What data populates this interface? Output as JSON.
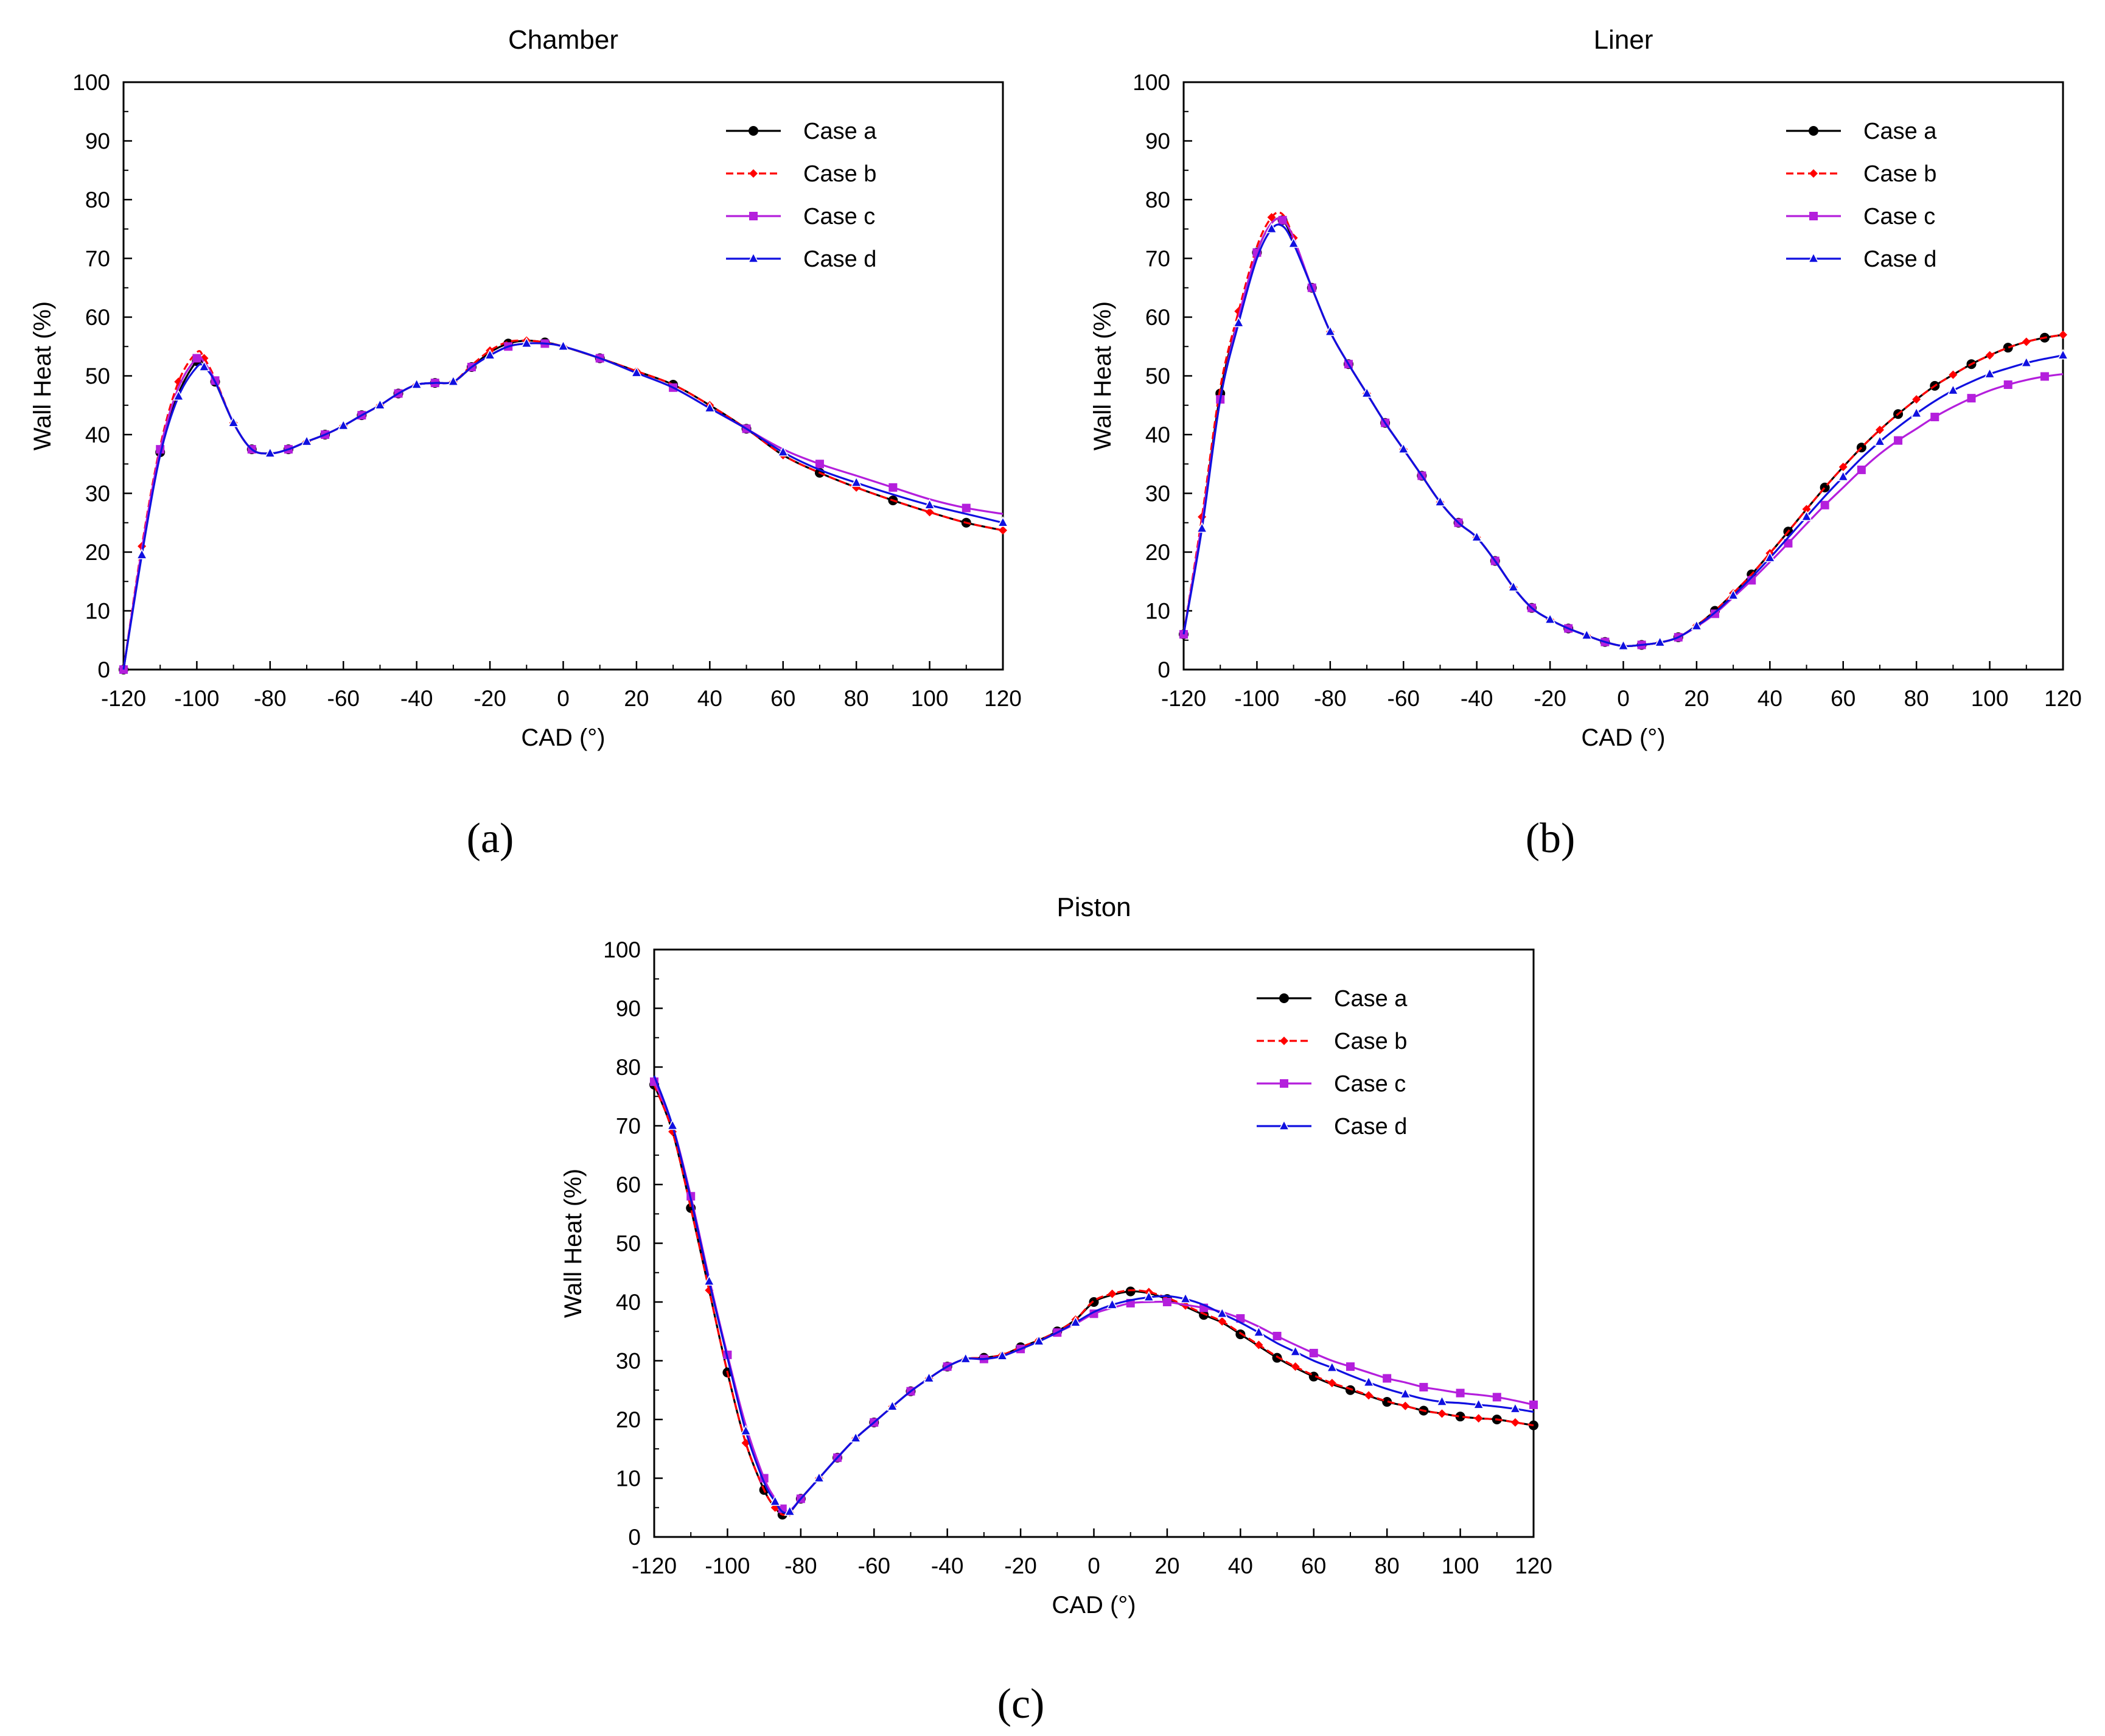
{
  "figure": {
    "panel_labels": [
      "(a)",
      "(b)",
      "(c)"
    ],
    "legend_entries": [
      "Case a",
      "Case b",
      "Case c",
      "Case d"
    ]
  },
  "series_styles": [
    {
      "name": "Case a",
      "color": "#000000",
      "marker": "circle",
      "dashed": false
    },
    {
      "name": "Case b",
      "color": "#ff0000",
      "marker": "diamond",
      "dashed": true
    },
    {
      "name": "Case c",
      "color": "#b41fdc",
      "marker": "square",
      "dashed": false
    },
    {
      "name": "Case d",
      "color": "#1010e0",
      "marker": "triangle",
      "dashed": false
    }
  ],
  "chart_data": [
    {
      "type": "line",
      "title": "Chamber",
      "xlabel": "CAD (°)",
      "ylabel": "Wall Heat (%)",
      "xlim": [
        -120,
        120
      ],
      "ylim": [
        0,
        100
      ],
      "xticks": [
        -120,
        -100,
        -80,
        -60,
        -40,
        -20,
        0,
        20,
        40,
        60,
        80,
        100,
        120
      ],
      "yticks": [
        0,
        10,
        20,
        30,
        40,
        50,
        60,
        70,
        80,
        90,
        100
      ],
      "legend_position": "top-right",
      "x": [
        -120,
        -115,
        -110,
        -105,
        -100,
        -98,
        -95,
        -90,
        -85,
        -80,
        -75,
        -70,
        -65,
        -60,
        -55,
        -50,
        -45,
        -40,
        -35,
        -30,
        -25,
        -20,
        -15,
        -10,
        -5,
        0,
        10,
        20,
        30,
        40,
        50,
        60,
        70,
        80,
        90,
        100,
        110,
        120
      ],
      "series": [
        {
          "name": "Case a",
          "values": [
            0,
            20,
            37,
            47,
            52.5,
            52,
            49,
            42,
            37.5,
            36.8,
            37.5,
            38.8,
            40,
            41.5,
            43.3,
            45,
            47,
            48.5,
            48.8,
            49,
            51.5,
            54,
            55.5,
            56,
            55.7,
            55,
            53,
            50.8,
            48.5,
            45,
            41,
            36.5,
            33.5,
            31,
            28.8,
            26.8,
            25,
            23.7
          ]
        },
        {
          "name": "Case b",
          "values": [
            0,
            21,
            38,
            49,
            54,
            53,
            49.5,
            42,
            37.5,
            36.8,
            37.5,
            38.8,
            40,
            41.5,
            43.3,
            45,
            47,
            48.5,
            48.8,
            49,
            51.8,
            54.3,
            55.8,
            56,
            55.7,
            55,
            53,
            50.8,
            48.5,
            45,
            41,
            36.5,
            33.5,
            31,
            28.8,
            26.8,
            25,
            23.7
          ]
        },
        {
          "name": "Case c",
          "values": [
            0,
            20.5,
            37.5,
            48,
            53,
            52.3,
            49.2,
            42,
            37.5,
            36.8,
            37.5,
            38.8,
            40,
            41.5,
            43.3,
            45,
            47,
            48.5,
            48.8,
            49,
            51.5,
            53.5,
            55,
            55.5,
            55.5,
            55,
            53,
            50.5,
            48,
            44.5,
            41,
            37.5,
            35,
            33,
            31,
            29,
            27.5,
            26.5
          ]
        },
        {
          "name": "Case d",
          "values": [
            0,
            19.5,
            36.5,
            46.5,
            51.5,
            51.5,
            49,
            42,
            37.5,
            36.8,
            37.5,
            38.8,
            40,
            41.5,
            43.3,
            45,
            47,
            48.5,
            48.8,
            49,
            51.5,
            53.5,
            55,
            55.5,
            55.5,
            55,
            53,
            50.5,
            48,
            44.5,
            41,
            37,
            34,
            31.8,
            29.8,
            28,
            26.5,
            25
          ]
        }
      ]
    },
    {
      "type": "line",
      "title": "Liner",
      "xlabel": "CAD (°)",
      "ylabel": "Wall Heat (%)",
      "xlim": [
        -120,
        120
      ],
      "ylim": [
        0,
        100
      ],
      "xticks": [
        -120,
        -100,
        -80,
        -60,
        -40,
        -20,
        0,
        20,
        40,
        60,
        80,
        100,
        120
      ],
      "yticks": [
        0,
        10,
        20,
        30,
        40,
        50,
        60,
        70,
        80,
        90,
        100
      ],
      "legend_position": "top-right",
      "x": [
        -120,
        -115,
        -110,
        -105,
        -100,
        -96,
        -93,
        -90,
        -85,
        -80,
        -75,
        -70,
        -65,
        -60,
        -55,
        -50,
        -45,
        -40,
        -35,
        -30,
        -25,
        -20,
        -15,
        -10,
        -5,
        0,
        5,
        10,
        15,
        20,
        25,
        30,
        35,
        40,
        45,
        50,
        55,
        60,
        65,
        70,
        75,
        80,
        85,
        90,
        95,
        100,
        105,
        110,
        115,
        120
      ],
      "series": [
        {
          "name": "Case a",
          "values": [
            6,
            25,
            47,
            60,
            71,
            76,
            76.5,
            73,
            65,
            57.5,
            52,
            47,
            42,
            37.5,
            33,
            28.5,
            25,
            22.5,
            18.5,
            14,
            10.5,
            8.5,
            7,
            5.8,
            4.7,
            4,
            4.2,
            4.6,
            5.5,
            7.5,
            10,
            13,
            16.2,
            19.8,
            23.5,
            27.3,
            31,
            34.5,
            37.8,
            40.8,
            43.5,
            46,
            48.3,
            50.2,
            52,
            53.5,
            54.8,
            55.8,
            56.5,
            57
          ]
        },
        {
          "name": "Case b",
          "values": [
            6,
            26,
            48,
            61,
            72,
            77,
            77.5,
            73.5,
            65,
            57.5,
            52,
            47,
            42,
            37.5,
            33,
            28.5,
            25,
            22.5,
            18.5,
            14,
            10.5,
            8.5,
            7,
            5.8,
            4.7,
            4,
            4.2,
            4.6,
            5.5,
            7.5,
            10,
            13,
            16.2,
            19.8,
            23.5,
            27.3,
            31,
            34.5,
            37.8,
            40.8,
            43.5,
            46,
            48.3,
            50.2,
            52,
            53.5,
            54.8,
            55.8,
            56.5,
            57
          ]
        },
        {
          "name": "Case c",
          "values": [
            6,
            25,
            46,
            60,
            71,
            76,
            76.5,
            73.5,
            65,
            57.5,
            52,
            47,
            42,
            37.5,
            33,
            28.5,
            25,
            22.5,
            18.5,
            14,
            10.5,
            8.5,
            7,
            5.8,
            4.7,
            4,
            4.2,
            4.6,
            5.5,
            7.3,
            9.5,
            12.3,
            15.2,
            18.3,
            21.5,
            24.8,
            28,
            31,
            34,
            36.7,
            39,
            41,
            43,
            44.7,
            46.2,
            47.5,
            48.5,
            49.3,
            49.9,
            50.3
          ]
        },
        {
          "name": "Case d",
          "values": [
            6,
            24,
            46,
            59,
            70,
            75,
            75.5,
            72.5,
            65,
            57.5,
            52,
            47,
            42,
            37.5,
            33,
            28.5,
            25,
            22.5,
            18.5,
            14,
            10.5,
            8.5,
            7,
            5.8,
            4.7,
            4,
            4.2,
            4.6,
            5.5,
            7.4,
            9.7,
            12.6,
            15.7,
            19,
            22.5,
            26,
            29.5,
            32.8,
            36,
            38.8,
            41.3,
            43.6,
            45.7,
            47.5,
            49,
            50.3,
            51.3,
            52.2,
            52.9,
            53.5
          ]
        }
      ]
    },
    {
      "type": "line",
      "title": "Piston",
      "xlabel": "CAD (°)",
      "ylabel": "Wall Heat (%)",
      "xlim": [
        -120,
        120
      ],
      "ylim": [
        0,
        100
      ],
      "xticks": [
        -120,
        -100,
        -80,
        -60,
        -40,
        -20,
        0,
        20,
        40,
        60,
        80,
        100,
        120
      ],
      "yticks": [
        0,
        10,
        20,
        30,
        40,
        50,
        60,
        70,
        80,
        90,
        100
      ],
      "legend_position": "top-right",
      "x": [
        -120,
        -115,
        -110,
        -105,
        -100,
        -95,
        -90,
        -87,
        -85,
        -83,
        -80,
        -75,
        -70,
        -65,
        -60,
        -55,
        -50,
        -45,
        -40,
        -35,
        -30,
        -25,
        -20,
        -15,
        -10,
        -5,
        0,
        5,
        10,
        15,
        20,
        25,
        30,
        35,
        40,
        45,
        50,
        55,
        60,
        65,
        70,
        75,
        80,
        85,
        90,
        95,
        100,
        105,
        110,
        115,
        120
      ],
      "series": [
        {
          "name": "Case a",
          "values": [
            77,
            69,
            56,
            42,
            28,
            16,
            8,
            5,
            3.8,
            4.2,
            6.5,
            10,
            13.5,
            16.8,
            19.5,
            22.2,
            24.8,
            27,
            29,
            30.3,
            30.5,
            31,
            32.3,
            33.5,
            35,
            37,
            40,
            41.2,
            41.8,
            41.5,
            40.5,
            39.2,
            37.8,
            36.5,
            34.5,
            32.5,
            30.5,
            28.8,
            27.3,
            26,
            25,
            24,
            23,
            22.3,
            21.5,
            21,
            20.5,
            20.2,
            20,
            19.5,
            19
          ]
        },
        {
          "name": "Case b",
          "values": [
            77,
            69,
            56,
            42,
            28,
            16,
            8,
            5,
            3.8,
            4.2,
            6.5,
            10,
            13.5,
            16.8,
            19.5,
            22.2,
            24.8,
            27,
            29,
            30.3,
            30.5,
            31,
            32.3,
            33.5,
            35,
            37,
            40.2,
            41.4,
            42,
            41.7,
            40.7,
            39.4,
            38,
            36.7,
            34.7,
            32.7,
            30.7,
            29,
            27.5,
            26.2,
            25.2,
            24.1,
            23.1,
            22.3,
            21.5,
            21,
            20.5,
            20.2,
            20,
            19.5,
            19
          ]
        },
        {
          "name": "Case c",
          "values": [
            77.5,
            70,
            58,
            44,
            31,
            19,
            10,
            6.5,
            4.8,
            4.5,
            6.5,
            10,
            13.5,
            16.8,
            19.5,
            22.2,
            24.8,
            27,
            29,
            30.3,
            30.3,
            30.8,
            32,
            33.3,
            34.8,
            36.3,
            38,
            39,
            39.8,
            40,
            40,
            39.5,
            39,
            38.3,
            37.2,
            35.8,
            34.2,
            32.7,
            31.3,
            30,
            29,
            28,
            27,
            26.3,
            25.5,
            25,
            24.5,
            24.2,
            23.8,
            23.2,
            22.5
          ]
        },
        {
          "name": "Case d",
          "values": [
            78.5,
            70,
            57.5,
            43.5,
            30.5,
            18,
            9.3,
            6,
            4.3,
            4.3,
            6.5,
            10,
            13.5,
            16.8,
            19.5,
            22.2,
            24.8,
            27,
            29,
            30.3,
            30.3,
            30.8,
            32,
            33.3,
            34.8,
            36.5,
            38.3,
            39.5,
            40.3,
            40.8,
            41,
            40.5,
            39.5,
            38,
            36.5,
            34.8,
            33,
            31.5,
            30,
            28.8,
            27.5,
            26.3,
            25.2,
            24.3,
            23.5,
            23,
            22.8,
            22.5,
            22.2,
            21.8,
            21.3
          ]
        }
      ]
    }
  ]
}
